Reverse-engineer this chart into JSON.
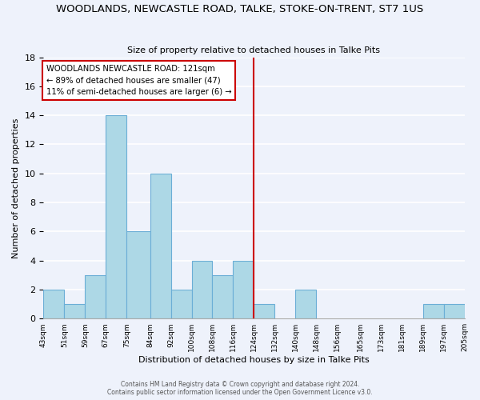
{
  "title": "WOODLANDS, NEWCASTLE ROAD, TALKE, STOKE-ON-TRENT, ST7 1US",
  "subtitle": "Size of property relative to detached houses in Talke Pits",
  "xlabel": "Distribution of detached houses by size in Talke Pits",
  "ylabel": "Number of detached properties",
  "bin_edges": [
    43,
    51,
    59,
    67,
    75,
    84,
    92,
    100,
    108,
    116,
    124,
    132,
    140,
    148,
    156,
    165,
    173,
    181,
    189,
    197,
    205
  ],
  "counts": [
    2,
    1,
    3,
    14,
    6,
    10,
    2,
    4,
    3,
    4,
    1,
    0,
    2,
    0,
    0,
    0,
    0,
    0,
    1,
    1
  ],
  "bar_color": "#add8e6",
  "bar_edge_color": "#6baed6",
  "vline_x": 124,
  "vline_color": "#cc0000",
  "annotation_text": "WOODLANDS NEWCASTLE ROAD: 121sqm\n← 89% of detached houses are smaller (47)\n11% of semi-detached houses are larger (6) →",
  "annotation_box_color": "white",
  "annotation_box_edge_color": "#cc0000",
  "ylim": [
    0,
    18
  ],
  "yticks": [
    0,
    2,
    4,
    6,
    8,
    10,
    12,
    14,
    16,
    18
  ],
  "tick_labels": [
    "43sqm",
    "51sqm",
    "59sqm",
    "67sqm",
    "75sqm",
    "84sqm",
    "92sqm",
    "100sqm",
    "108sqm",
    "116sqm",
    "124sqm",
    "132sqm",
    "140sqm",
    "148sqm",
    "156sqm",
    "165sqm",
    "173sqm",
    "181sqm",
    "189sqm",
    "197sqm",
    "205sqm"
  ],
  "footer_text": "Contains HM Land Registry data © Crown copyright and database right 2024.\nContains public sector information licensed under the Open Government Licence v3.0.",
  "background_color": "#eef2fb",
  "grid_color": "white"
}
